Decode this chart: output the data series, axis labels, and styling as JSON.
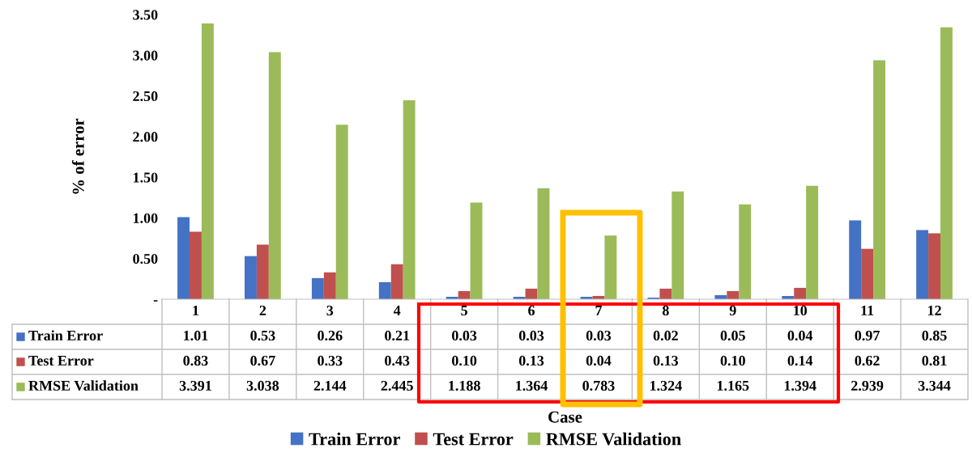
{
  "chart_data": {
    "type": "bar",
    "annotations": [
      "Case"
    ],
    "ylabel": "% of error",
    "categories": [
      "1",
      "2",
      "3",
      "4",
      "5",
      "6",
      "7",
      "8",
      "9",
      "10",
      "11",
      "12"
    ],
    "series": [
      {
        "name": "Train Error",
        "color": "#4472c4",
        "values": [
          1.01,
          0.53,
          0.26,
          0.21,
          0.03,
          0.03,
          0.03,
          0.02,
          0.05,
          0.04,
          0.97,
          0.85
        ],
        "value_labels": [
          "1.01",
          "0.53",
          "0.26",
          "0.21",
          "0.03",
          "0.03",
          "0.03",
          "0.02",
          "0.05",
          "0.04",
          "0.97",
          "0.85"
        ]
      },
      {
        "name": "Test Error",
        "color": "#c0504d",
        "values": [
          0.83,
          0.67,
          0.33,
          0.43,
          0.1,
          0.13,
          0.04,
          0.13,
          0.1,
          0.14,
          0.62,
          0.81
        ],
        "value_labels": [
          "0.83",
          "0.67",
          "0.33",
          "0.43",
          "0.10",
          "0.13",
          "0.04",
          "0.13",
          "0.10",
          "0.14",
          "0.62",
          "0.81"
        ]
      },
      {
        "name": "RMSE Validation",
        "color": "#9bbb59",
        "values": [
          3.391,
          3.038,
          2.144,
          2.445,
          1.188,
          1.364,
          0.783,
          1.324,
          1.165,
          1.394,
          2.939,
          3.344
        ],
        "value_labels": [
          "3.391",
          "3.038",
          "2.144",
          "2.445",
          "1.188",
          "1.364",
          "0.783",
          "1.324",
          "1.165",
          "1.394",
          "2.939",
          "3.344"
        ]
      }
    ],
    "ylim": [
      0,
      3.5
    ],
    "yticks": [
      {
        "value": 0,
        "label": "-"
      },
      {
        "value": 0.5,
        "label": "0.50"
      },
      {
        "value": 1.0,
        "label": "1.00"
      },
      {
        "value": 1.5,
        "label": "1.50"
      },
      {
        "value": 2.0,
        "label": "2.00"
      },
      {
        "value": 2.5,
        "label": "2.50"
      },
      {
        "value": 3.0,
        "label": "3.00"
      },
      {
        "value": 3.5,
        "label": "3.50"
      }
    ],
    "grid": false,
    "legend": "bottom"
  }
}
